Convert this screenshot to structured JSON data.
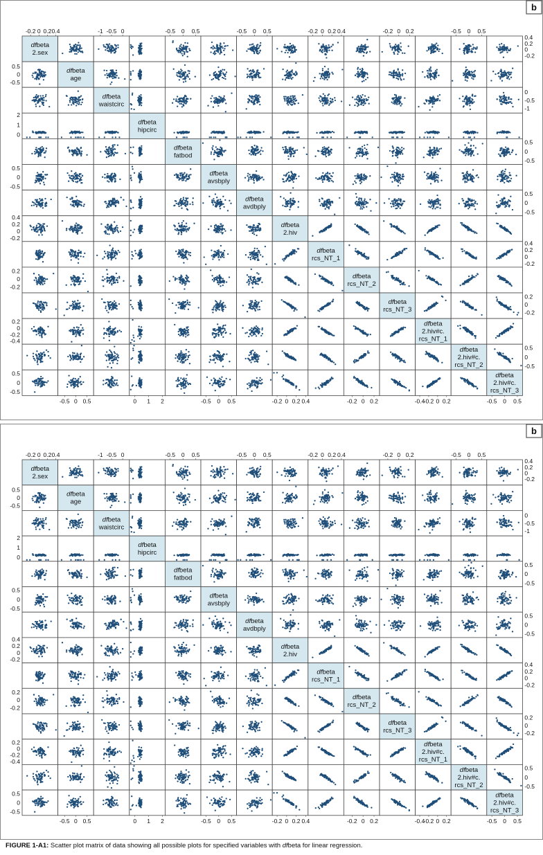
{
  "figure": {
    "panel_label": "b",
    "caption_label": "FIGURE 1-A1:",
    "caption_text_pre": " Scatter plot matrix of data showing all possible plots for specified variables with ",
    "caption_italic": "df",
    "caption_text_post": "beta for linear regression.",
    "diag_prefix": "df",
    "diag_suffix": "beta"
  },
  "chart_data": [
    {
      "type": "scatter",
      "subtype": "scatter-plot-matrix",
      "panel": "b",
      "variables": [
        {
          "name": "2.sex",
          "ticks": [
            -0.2,
            0,
            0.2,
            0.4
          ],
          "tick_labels": [
            "-0.2",
            "0",
            "0.2",
            "0.4"
          ],
          "range": [
            -0.4,
            0.45
          ]
        },
        {
          "name": "age",
          "ticks": [
            -0.5,
            0,
            0.5
          ],
          "tick_labels": [
            "-0.5",
            "0",
            "0.5"
          ],
          "range": [
            -0.8,
            0.8
          ]
        },
        {
          "name": "waistcirc",
          "ticks": [
            -1,
            -0.5,
            0
          ],
          "tick_labels": [
            "-1",
            "-0.5",
            "0"
          ],
          "range": [
            -1.3,
            0.3
          ]
        },
        {
          "name": "hipcirc",
          "ticks": [
            0,
            1,
            2
          ],
          "tick_labels": [
            "0",
            "1",
            "2"
          ],
          "range": [
            -0.4,
            2.2
          ]
        },
        {
          "name": "fatbod",
          "ticks": [
            -0.5,
            0,
            0.5
          ],
          "tick_labels": [
            "-0.5",
            "0",
            "0.5"
          ],
          "range": [
            -0.7,
            0.7
          ]
        },
        {
          "name": "avsbply",
          "ticks": [
            -0.5,
            0,
            0.5
          ],
          "tick_labels": [
            "-0.5",
            "0",
            "0.5"
          ],
          "range": [
            -0.7,
            0.7
          ]
        },
        {
          "name": "avdbply",
          "ticks": [
            -0.5,
            0,
            0.5
          ],
          "tick_labels": [
            "-0.5",
            "0",
            "0.5"
          ],
          "range": [
            -0.7,
            0.7
          ]
        },
        {
          "name": "2.hiv",
          "ticks": [
            -0.2,
            0,
            0.2,
            0.4
          ],
          "tick_labels": [
            "-0.2",
            "0",
            "0.2",
            "0.4"
          ],
          "range": [
            -0.3,
            0.45
          ]
        },
        {
          "name": "rcs_NT_1",
          "ticks": [
            -0.2,
            0,
            0.2,
            0.4
          ],
          "tick_labels": [
            "-0.2",
            "0",
            "0.2",
            "0.4"
          ],
          "range": [
            -0.3,
            0.45
          ]
        },
        {
          "name": "rcs_NT_2",
          "ticks": [
            -0.2,
            0,
            0.2
          ],
          "tick_labels": [
            "-0.2",
            "0",
            "0.2"
          ],
          "range": [
            -0.35,
            0.3
          ]
        },
        {
          "name": "rcs_NT_3",
          "ticks": [
            -0.2,
            0,
            0.2
          ],
          "tick_labels": [
            "-0.2",
            "0",
            "0.2"
          ],
          "range": [
            -0.35,
            0.3
          ]
        },
        {
          "name": "2.hiv#c.\nrcs_NT_1",
          "ticks": [
            -0.4,
            -0.2,
            0,
            0.2
          ],
          "tick_labels": [
            "-0.4",
            "-0.2",
            "0",
            "0.2"
          ],
          "range": [
            -0.5,
            0.3
          ]
        },
        {
          "name": "2.hiv#c.\nrcs_NT_2",
          "ticks": [
            -0.5,
            0,
            0.5
          ],
          "tick_labels": [
            "-0.5",
            "0",
            "0.5"
          ],
          "range": [
            -0.7,
            0.7
          ]
        },
        {
          "name": "2.hiv#c.\nrcs_NT_3",
          "ticks": [
            -0.5,
            0,
            0.5
          ],
          "tick_labels": [
            "-0.5",
            "0",
            "0.5"
          ],
          "range": [
            -0.7,
            0.7
          ]
        }
      ],
      "point_color": "#1f4e79",
      "diag_fill": "#d5e8f0",
      "grid": false,
      "legend": "none"
    },
    {
      "type": "scatter",
      "subtype": "scatter-plot-matrix",
      "panel": "b",
      "variables": [
        {
          "name": "2.sex",
          "ticks": [
            -0.2,
            0,
            0.2,
            0.4
          ],
          "tick_labels": [
            "-0.2",
            "0",
            "0.2",
            "0.4"
          ],
          "range": [
            -0.4,
            0.45
          ]
        },
        {
          "name": "age",
          "ticks": [
            -0.5,
            0,
            0.5
          ],
          "tick_labels": [
            "-0.5",
            "0",
            "0.5"
          ],
          "range": [
            -0.8,
            0.8
          ]
        },
        {
          "name": "waistcirc",
          "ticks": [
            -1,
            -0.5,
            0
          ],
          "tick_labels": [
            "-1",
            "-0.5",
            "0"
          ],
          "range": [
            -1.3,
            0.3
          ]
        },
        {
          "name": "hipcirc",
          "ticks": [
            0,
            1,
            2
          ],
          "tick_labels": [
            "0",
            "1",
            "2"
          ],
          "range": [
            -0.4,
            2.2
          ]
        },
        {
          "name": "fatbod",
          "ticks": [
            -0.5,
            0,
            0.5
          ],
          "tick_labels": [
            "-0.5",
            "0",
            "0.5"
          ],
          "range": [
            -0.7,
            0.7
          ]
        },
        {
          "name": "avsbply",
          "ticks": [
            -0.5,
            0,
            0.5
          ],
          "tick_labels": [
            "-0.5",
            "0",
            "0.5"
          ],
          "range": [
            -0.7,
            0.7
          ]
        },
        {
          "name": "avdbply",
          "ticks": [
            -0.5,
            0,
            0.5
          ],
          "tick_labels": [
            "-0.5",
            "0",
            "0.5"
          ],
          "range": [
            -0.7,
            0.7
          ]
        },
        {
          "name": "2.hiv",
          "ticks": [
            -0.2,
            0,
            0.2,
            0.4
          ],
          "tick_labels": [
            "-0.2",
            "0",
            "0.2",
            "0.4"
          ],
          "range": [
            -0.3,
            0.45
          ]
        },
        {
          "name": "rcs_NT_1",
          "ticks": [
            -0.2,
            0,
            0.2,
            0.4
          ],
          "tick_labels": [
            "-0.2",
            "0",
            "0.2",
            "0.4"
          ],
          "range": [
            -0.3,
            0.45
          ]
        },
        {
          "name": "rcs_NT_2",
          "ticks": [
            -0.2,
            0,
            0.2
          ],
          "tick_labels": [
            "-0.2",
            "0",
            "0.2"
          ],
          "range": [
            -0.35,
            0.3
          ]
        },
        {
          "name": "rcs_NT_3",
          "ticks": [
            -0.2,
            0,
            0.2
          ],
          "tick_labels": [
            "-0.2",
            "0",
            "0.2"
          ],
          "range": [
            -0.35,
            0.3
          ]
        },
        {
          "name": "2.hiv#c.\nrcs_NT_1",
          "ticks": [
            -0.4,
            -0.2,
            0,
            0.2
          ],
          "tick_labels": [
            "-0.4",
            "-0.2",
            "0",
            "0.2"
          ],
          "range": [
            -0.5,
            0.3
          ]
        },
        {
          "name": "2.hiv#c.\nrcs_NT_2",
          "ticks": [
            -0.5,
            0,
            0.5
          ],
          "tick_labels": [
            "-0.5",
            "0",
            "0.5"
          ],
          "range": [
            -0.7,
            0.7
          ]
        },
        {
          "name": "2.hiv#c.\nrcs_NT_3",
          "ticks": [
            -0.5,
            0,
            0.5
          ],
          "tick_labels": [
            "-0.5",
            "0",
            "0.5"
          ],
          "range": [
            -0.7,
            0.7
          ]
        }
      ],
      "point_color": "#1f4e79",
      "diag_fill": "#d5e8f0",
      "grid": false,
      "legend": "none"
    }
  ]
}
